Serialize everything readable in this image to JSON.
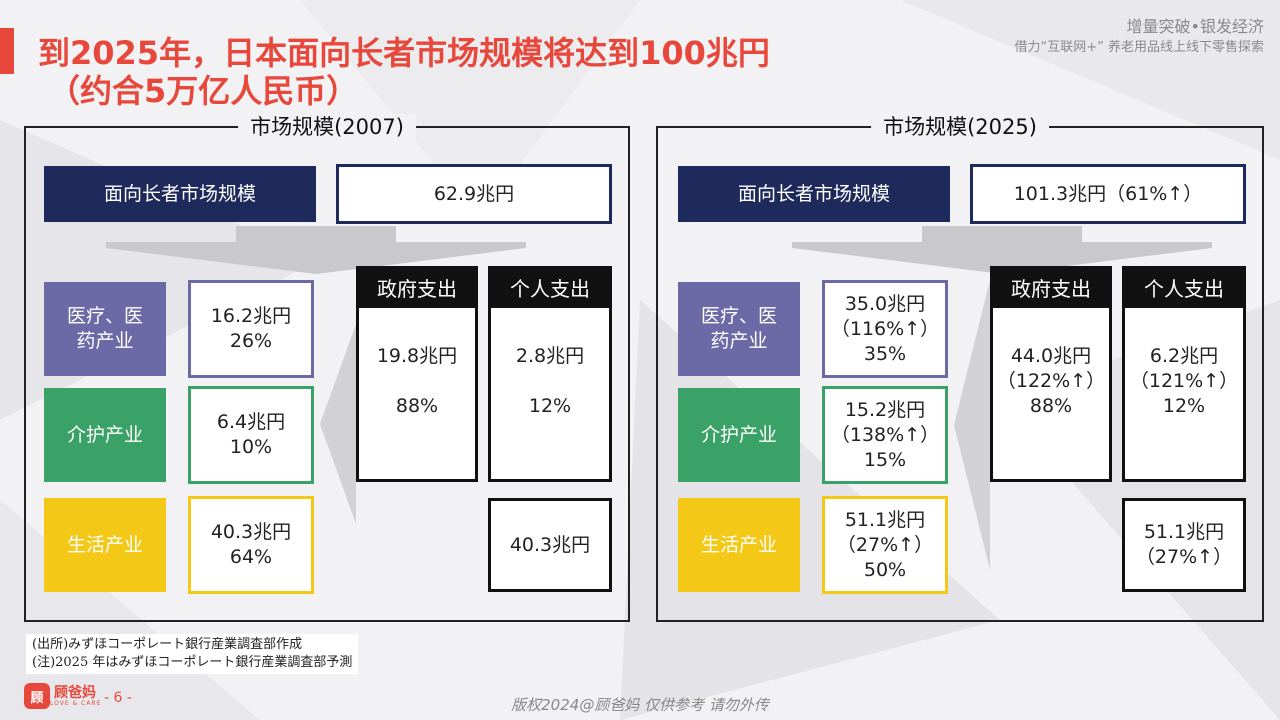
{
  "title": {
    "line1": "到2025年，日本面向长者市场规模将达到100兆円",
    "line2": "（约合5万亿人民币）"
  },
  "tagline": {
    "line1": "增量突破•银发经济",
    "line2": "借力“互联网+” 养老用品线上线下零售探索"
  },
  "panels": [
    {
      "title": "市场规模(2007)",
      "total_label": "面向长者市场规模",
      "total_value": "62.9兆円",
      "sectors": [
        {
          "label": "医疗、医药产业",
          "value_lines": [
            "16.2兆円",
            "26%"
          ]
        },
        {
          "label": "介护产业",
          "value_lines": [
            "6.4兆円",
            "10%"
          ]
        },
        {
          "label": "生活产业",
          "value_lines": [
            "40.3兆円",
            "64%"
          ]
        }
      ],
      "gov": {
        "header": "政府支出",
        "lines": [
          "19.8兆円",
          "",
          "88%"
        ]
      },
      "personal": {
        "header": "个人支出",
        "lines": [
          "2.8兆円",
          "",
          "12%"
        ]
      },
      "personal_life": [
        "40.3兆円"
      ]
    },
    {
      "title": "市场规模(2025)",
      "total_label": "面向长者市场规模",
      "total_value": "101.3兆円（61%↑）",
      "sectors": [
        {
          "label": "医疗、医药产业",
          "value_lines": [
            "35.0兆円",
            "（116%↑）",
            "35%"
          ]
        },
        {
          "label": "介护产业",
          "value_lines": [
            "15.2兆円",
            "（138%↑）",
            "15%"
          ]
        },
        {
          "label": "生活产业",
          "value_lines": [
            "51.1兆円",
            "（27%↑）",
            "50%"
          ]
        }
      ],
      "gov": {
        "header": "政府支出",
        "lines": [
          "44.0兆円",
          "（122%↑）",
          "88%"
        ]
      },
      "personal": {
        "header": "个人支出",
        "lines": [
          "6.2兆円",
          "（121%↑）",
          "12%"
        ]
      },
      "personal_life": [
        "51.1兆円",
        "（27%↑）"
      ]
    }
  ],
  "footnote": {
    "line1": "(出所)みずほコーポレート銀行産業調査部作成",
    "line2": "(注)2025 年はみずほコーポレート銀行産業調査部予測"
  },
  "logo": {
    "mark": "顾",
    "name": "顾爸妈",
    "sub": "LOVE & CARE"
  },
  "page_number": "- 6 -",
  "copyright": "版权2024@顾爸妈 仅供参考 请勿外传",
  "colors": {
    "accent": "#e8483b",
    "navy": "#1f2a5c",
    "purple": "#6c6aa6",
    "green": "#3aa266",
    "yellow": "#f3c816"
  }
}
